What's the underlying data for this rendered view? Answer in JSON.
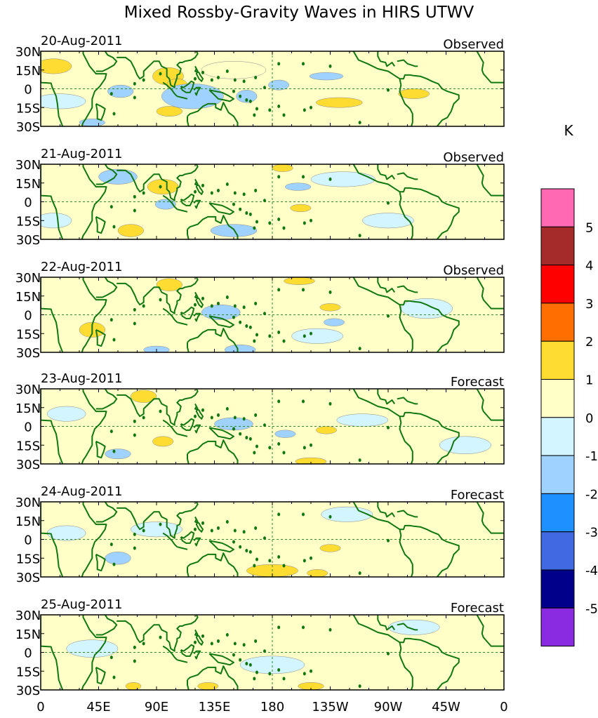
{
  "chart_data": {
    "type": "heatmap",
    "title": "Mixed Rossby-Gravity Waves in HIRS UTWV",
    "colorbar": {
      "unit": "K",
      "levels": [
        "5",
        "4",
        "3",
        "2",
        "1",
        "0",
        "-1",
        "-2",
        "-3",
        "-4",
        "-5"
      ],
      "colors": [
        "#ff69b4",
        "#a52a2a",
        "#ff0000",
        "#ff6e00",
        "#ffdc32",
        "#ffffc8",
        "#d2f5ff",
        "#a0d2ff",
        "#1e90ff",
        "#4169e1",
        "#00008b",
        "#8a2be2"
      ]
    },
    "xaxis": {
      "ticks": [
        "0",
        "45E",
        "90E",
        "135E",
        "180",
        "135W",
        "90W",
        "45W",
        "0"
      ],
      "lon_min": 0,
      "lon_max": 360
    },
    "yaxis": {
      "ticks": [
        "30N",
        "15N",
        "0",
        "15S",
        "30S"
      ],
      "lat_min": -30,
      "lat_max": 30
    },
    "panels": [
      {
        "date": "20-Aug-2011",
        "kind": "Observed"
      },
      {
        "date": "21-Aug-2011",
        "kind": "Observed"
      },
      {
        "date": "22-Aug-2011",
        "kind": "Observed"
      },
      {
        "date": "23-Aug-2011",
        "kind": "Forecast"
      },
      {
        "date": "24-Aug-2011",
        "kind": "Forecast"
      },
      {
        "date": "25-Aug-2011",
        "kind": "Forecast"
      }
    ],
    "anomalies": [
      [
        {
          "lon": 10,
          "lat": 18,
          "rx": 14,
          "ry": 6,
          "v": 1.5
        },
        {
          "lon": 62,
          "lat": -2,
          "rx": 10,
          "ry": 5,
          "v": -1.5
        },
        {
          "lon": 99,
          "lat": 10,
          "rx": 12,
          "ry": 7,
          "v": 1.6
        },
        {
          "lon": 106,
          "lat": 3,
          "rx": 8,
          "ry": 5,
          "v": 1.4
        },
        {
          "lon": 118,
          "lat": -6,
          "rx": 24,
          "ry": 10,
          "v": -1.4
        },
        {
          "lon": 160,
          "lat": -6,
          "rx": 8,
          "ry": 5,
          "v": -1.3
        },
        {
          "lon": 100,
          "lat": -18,
          "rx": 10,
          "ry": 4,
          "v": 1.5
        },
        {
          "lon": 40,
          "lat": -27,
          "rx": 10,
          "ry": 3,
          "v": -1.4
        },
        {
          "lon": 222,
          "lat": 10,
          "rx": 13,
          "ry": 3,
          "v": -1.5
        },
        {
          "lon": 232,
          "lat": -11,
          "rx": 18,
          "ry": 4,
          "v": 1.6
        },
        {
          "lon": 290,
          "lat": -4,
          "rx": 12,
          "ry": 4,
          "v": 1.3
        },
        {
          "lon": 185,
          "lat": 3,
          "rx": 8,
          "ry": 4,
          "v": -1.2
        },
        {
          "lon": 15,
          "lat": -10,
          "rx": 20,
          "ry": 6,
          "v": -0.6
        },
        {
          "lon": 150,
          "lat": 15,
          "rx": 25,
          "ry": 7,
          "v": 0.6
        }
      ],
      [
        {
          "lon": 95,
          "lat": 12,
          "rx": 12,
          "ry": 6,
          "v": 1.5
        },
        {
          "lon": 60,
          "lat": 20,
          "rx": 15,
          "ry": 6,
          "v": -1.2
        },
        {
          "lon": 70,
          "lat": -23,
          "rx": 10,
          "ry": 5,
          "v": 1.6
        },
        {
          "lon": 97,
          "lat": -2,
          "rx": 8,
          "ry": 4,
          "v": -1.4
        },
        {
          "lon": 188,
          "lat": 27,
          "rx": 8,
          "ry": 3,
          "v": 1.5
        },
        {
          "lon": 202,
          "lat": -5,
          "rx": 8,
          "ry": 3,
          "v": 1.5
        },
        {
          "lon": 200,
          "lat": 12,
          "rx": 10,
          "ry": 3,
          "v": -1.3
        },
        {
          "lon": 150,
          "lat": -23,
          "rx": 18,
          "ry": 5,
          "v": -1.2
        },
        {
          "lon": 10,
          "lat": -15,
          "rx": 14,
          "ry": 6,
          "v": -0.6
        },
        {
          "lon": 270,
          "lat": -15,
          "rx": 20,
          "ry": 6,
          "v": -0.6
        },
        {
          "lon": 235,
          "lat": 18,
          "rx": 25,
          "ry": 6,
          "v": -0.6
        }
      ],
      [
        {
          "lon": 40,
          "lat": -12,
          "rx": 10,
          "ry": 6,
          "v": 1.4
        },
        {
          "lon": 100,
          "lat": 24,
          "rx": 10,
          "ry": 5,
          "v": 1.3
        },
        {
          "lon": 140,
          "lat": 2,
          "rx": 15,
          "ry": 6,
          "v": -1.3
        },
        {
          "lon": 155,
          "lat": -28,
          "rx": 12,
          "ry": 4,
          "v": -1.3
        },
        {
          "lon": 201,
          "lat": 27,
          "rx": 12,
          "ry": 3,
          "v": 1.6
        },
        {
          "lon": 225,
          "lat": 6,
          "rx": 8,
          "ry": 3,
          "v": 1.5
        },
        {
          "lon": 228,
          "lat": -6,
          "rx": 8,
          "ry": 3,
          "v": -1.2
        },
        {
          "lon": 90,
          "lat": -28,
          "rx": 10,
          "ry": 3,
          "v": -1.3
        },
        {
          "lon": 215,
          "lat": -17,
          "rx": 20,
          "ry": 6,
          "v": -0.6
        },
        {
          "lon": 300,
          "lat": 5,
          "rx": 20,
          "ry": 8,
          "v": -0.6
        }
      ],
      [
        {
          "lon": 80,
          "lat": 24,
          "rx": 10,
          "ry": 5,
          "v": 1.6
        },
        {
          "lon": 95,
          "lat": -12,
          "rx": 8,
          "ry": 4,
          "v": 1.4
        },
        {
          "lon": 60,
          "lat": -22,
          "rx": 10,
          "ry": 4,
          "v": -1.2
        },
        {
          "lon": 150,
          "lat": 2,
          "rx": 15,
          "ry": 5,
          "v": -1.2
        },
        {
          "lon": 210,
          "lat": -28,
          "rx": 12,
          "ry": 3,
          "v": 1.5
        },
        {
          "lon": 190,
          "lat": -6,
          "rx": 8,
          "ry": 3,
          "v": -1.3
        },
        {
          "lon": 222,
          "lat": -3,
          "rx": 8,
          "ry": 3,
          "v": 1.3
        },
        {
          "lon": 250,
          "lat": 5,
          "rx": 20,
          "ry": 5,
          "v": -0.6
        },
        {
          "lon": 330,
          "lat": -15,
          "rx": 20,
          "ry": 7,
          "v": -0.6
        },
        {
          "lon": 20,
          "lat": 10,
          "rx": 15,
          "ry": 6,
          "v": -0.6
        }
      ],
      [
        {
          "lon": 180,
          "lat": -25,
          "rx": 20,
          "ry": 5,
          "v": 1.4
        },
        {
          "lon": 215,
          "lat": -27,
          "rx": 8,
          "ry": 3,
          "v": 1.6
        },
        {
          "lon": 225,
          "lat": -7,
          "rx": 8,
          "ry": 3,
          "v": 1.4
        },
        {
          "lon": 60,
          "lat": -15,
          "rx": 10,
          "ry": 5,
          "v": -1.2
        },
        {
          "lon": 238,
          "lat": 20,
          "rx": 20,
          "ry": 6,
          "v": -0.6
        },
        {
          "lon": 90,
          "lat": 8,
          "rx": 20,
          "ry": 6,
          "v": -0.6
        },
        {
          "lon": 20,
          "lat": 5,
          "rx": 15,
          "ry": 6,
          "v": -0.6
        }
      ],
      [
        {
          "lon": 72,
          "lat": -27,
          "rx": 6,
          "ry": 3,
          "v": 1.5
        },
        {
          "lon": 130,
          "lat": -27,
          "rx": 8,
          "ry": 3,
          "v": 1.4
        },
        {
          "lon": 210,
          "lat": -27,
          "rx": 10,
          "ry": 3,
          "v": 1.4
        },
        {
          "lon": 180,
          "lat": -10,
          "rx": 25,
          "ry": 7,
          "v": -0.6
        },
        {
          "lon": 40,
          "lat": 3,
          "rx": 20,
          "ry": 7,
          "v": -0.6
        },
        {
          "lon": 290,
          "lat": 20,
          "rx": 20,
          "ry": 6,
          "v": -0.6
        }
      ]
    ]
  }
}
